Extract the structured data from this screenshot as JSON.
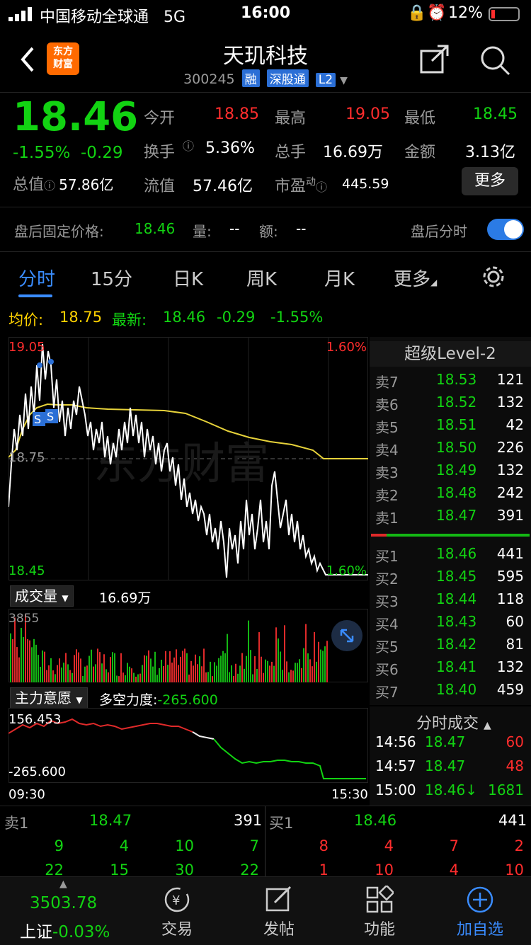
{
  "status": {
    "carrier": "中国移动全球通",
    "network": "5G",
    "time": "16:00",
    "battery": "12%"
  },
  "header": {
    "title": "天玑科技",
    "code": "300245",
    "tags": [
      "融",
      "深股通",
      "L2"
    ],
    "logo_text": [
      "东方",
      "财富"
    ]
  },
  "quote": {
    "price": "18.46",
    "change_pct": "-1.55%",
    "change": "-0.29",
    "open_label": "今开",
    "open": "18.85",
    "high_label": "最高",
    "high": "19.05",
    "low_label": "最低",
    "low": "18.45",
    "turnover_label": "换手",
    "turnover": "5.36%",
    "volume_label": "总手",
    "volume": "16.69万",
    "amount_label": "金额",
    "amount": "3.13亿",
    "mktcap_label": "总值",
    "mktcap": "57.86亿",
    "float_label": "流值",
    "float": "57.46亿",
    "pe_label": "市盈",
    "pe_sup": "动",
    "pe": "445.59",
    "more": "更多"
  },
  "after_hours": {
    "price_label": "盘后固定价格:",
    "price": "18.46",
    "vol_label": "量:",
    "vol": "--",
    "amt_label": "额:",
    "amt": "--",
    "toggle_label": "盘后分时",
    "toggle_on": true
  },
  "tabs": [
    "分时",
    "15分",
    "日K",
    "周K",
    "月K",
    "更多"
  ],
  "avg": {
    "avg_label": "均价:",
    "avg": "18.75",
    "latest_label": "最新:",
    "latest": "18.46",
    "chg": "-0.29",
    "pct": "-1.55%"
  },
  "chart": {
    "high_price": "19.05",
    "mid_price": "18.75",
    "low_price": "18.45",
    "high_pct": "1.60%",
    "low_pct": "1.60%",
    "watermark": "东方财富",
    "start_time": "09:30",
    "end_time": "15:30"
  },
  "volume_panel": {
    "label": "成交量",
    "value": "16.69万",
    "max": "3855"
  },
  "moneyflow_panel": {
    "label": "主力意愿",
    "indicator_label": "多空力度:",
    "indicator": "-265.600",
    "top": "156.453",
    "bottom": "-265.600"
  },
  "level2": {
    "title": "超级Level-2",
    "asks": [
      {
        "label": "卖7",
        "price": "18.53",
        "vol": "121"
      },
      {
        "label": "卖6",
        "price": "18.52",
        "vol": "132"
      },
      {
        "label": "卖5",
        "price": "18.51",
        "vol": "42"
      },
      {
        "label": "卖4",
        "price": "18.50",
        "vol": "226"
      },
      {
        "label": "卖3",
        "price": "18.49",
        "vol": "132"
      },
      {
        "label": "卖2",
        "price": "18.48",
        "vol": "242"
      },
      {
        "label": "卖1",
        "price": "18.47",
        "vol": "391"
      }
    ],
    "bids": [
      {
        "label": "买1",
        "price": "18.46",
        "vol": "441"
      },
      {
        "label": "买2",
        "price": "18.45",
        "vol": "595"
      },
      {
        "label": "买3",
        "price": "18.44",
        "vol": "118"
      },
      {
        "label": "买4",
        "price": "18.43",
        "vol": "60"
      },
      {
        "label": "买5",
        "price": "18.42",
        "vol": "81"
      },
      {
        "label": "买6",
        "price": "18.41",
        "vol": "132"
      },
      {
        "label": "买7",
        "price": "18.40",
        "vol": "459"
      }
    ]
  },
  "ticks": {
    "title": "分时成交",
    "rows": [
      {
        "time": "14:56",
        "price": "18.47",
        "vol": "60"
      },
      {
        "time": "14:57",
        "price": "18.47",
        "vol": "48"
      },
      {
        "time": "15:00",
        "price": "18.46↓",
        "vol": "1681"
      }
    ]
  },
  "queue": {
    "ask_label": "卖1",
    "ask_price": "18.47",
    "ask_vol": "391",
    "bid_label": "买1",
    "bid_price": "18.46",
    "bid_vol": "441",
    "ask_row1": [
      "9",
      "4",
      "10",
      "7"
    ],
    "ask_row2": [
      "22",
      "15",
      "30",
      "22"
    ],
    "bid_row1": [
      "8",
      "4",
      "7",
      "2"
    ],
    "bid_row2": [
      "1",
      "10",
      "4",
      "10"
    ]
  },
  "nav": {
    "index_value": "3503.78",
    "index_name": "上证",
    "index_change": "-0.03%",
    "items": [
      "交易",
      "发帖",
      "功能",
      "加自选"
    ]
  }
}
